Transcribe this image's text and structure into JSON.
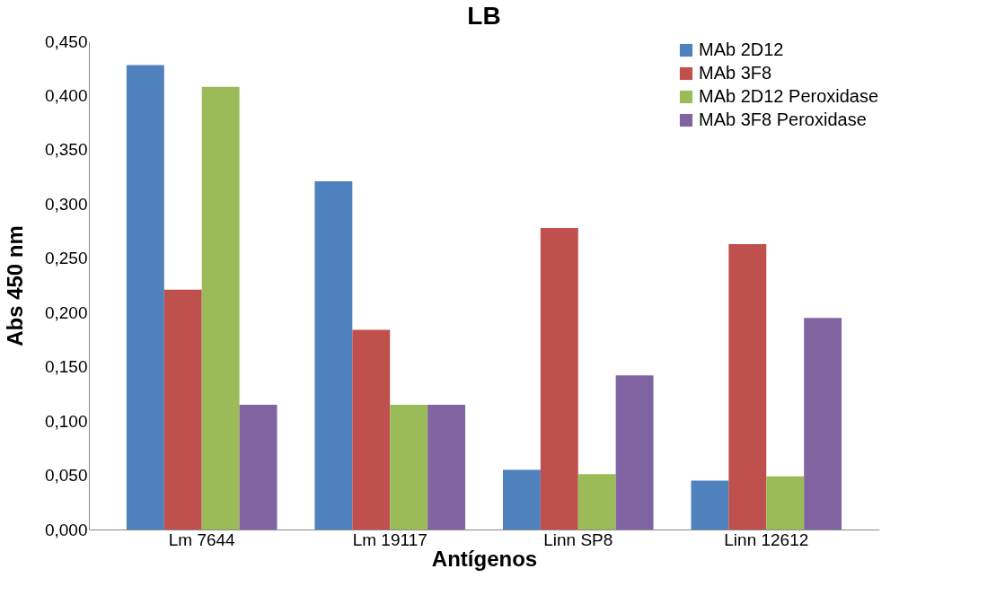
{
  "chart_data": {
    "type": "bar",
    "title": "LB",
    "xlabel": "Antígenos",
    "ylabel": "Abs 450 nm",
    "categories": [
      "Lm 7644",
      "Lm 19117",
      "Linn SP8",
      "Linn 12612"
    ],
    "series": [
      {
        "name": "MAb 2D12",
        "color": "#4f81bd",
        "values": [
          0.428,
          0.321,
          0.055,
          0.045
        ]
      },
      {
        "name": "MAb 3F8",
        "color": "#c0504d",
        "values": [
          0.221,
          0.184,
          0.278,
          0.263
        ]
      },
      {
        "name": "MAb 2D12 Peroxidase",
        "color": "#9bbb59",
        "values": [
          0.408,
          0.115,
          0.051,
          0.049
        ]
      },
      {
        "name": "MAb 3F8 Peroxidase",
        "color": "#8064a2",
        "values": [
          0.115,
          0.115,
          0.142,
          0.195
        ]
      }
    ],
    "ylim": [
      0,
      0.45
    ],
    "yticks": [
      {
        "value": 0,
        "label": "0,000"
      },
      {
        "value": 0.05,
        "label": "0,050"
      },
      {
        "value": 0.1,
        "label": "0,100"
      },
      {
        "value": 0.15,
        "label": "0,150"
      },
      {
        "value": 0.2,
        "label": "0,200"
      },
      {
        "value": 0.25,
        "label": "0,250"
      },
      {
        "value": 0.3,
        "label": "0,300"
      },
      {
        "value": 0.35,
        "label": "0,350"
      },
      {
        "value": 0.4,
        "label": "0,400"
      },
      {
        "value": 0.45,
        "label": "0,450"
      }
    ],
    "legend": "top right",
    "grid": false
  }
}
